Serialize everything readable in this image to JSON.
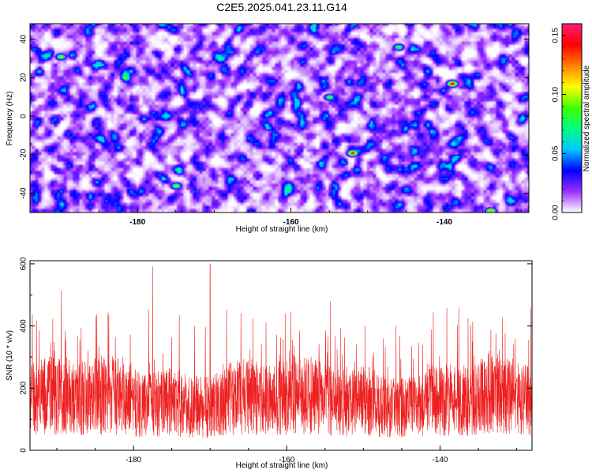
{
  "figure_title": "C2E5.2025.041.23.11.G14",
  "chart_data": [
    {
      "type": "heatmap",
      "title": "C2E5.2025.041.23.11.G14",
      "xlabel": "Height of straight line (km)",
      "ylabel": "Frequency (Hz)",
      "xlim": [
        -194,
        -129
      ],
      "ylim": [
        -50,
        48
      ],
      "x_ticks": [
        -180,
        -160,
        -140
      ],
      "x_tick_labels": [
        "-180",
        "-160",
        "-140"
      ],
      "y_ticks": [
        -40,
        -20,
        0,
        20,
        40
      ],
      "y_tick_labels": [
        "-40",
        "-20",
        "0",
        "20",
        "40"
      ],
      "colorbar": {
        "label": "Normalized spectral amplitude",
        "range": [
          0.0,
          0.16
        ],
        "ticks": [
          0.0,
          0.05,
          0.1,
          0.15
        ],
        "tick_labels": [
          "0.00",
          "0.05",
          "0.10",
          "0.15"
        ],
        "colors": [
          "#ffffff",
          "#9b30ff",
          "#0000ff",
          "#00c8ff",
          "#00ff80",
          "#40ff00",
          "#ffff00",
          "#ff8000",
          "#ff0000",
          "#ff1e78"
        ]
      },
      "peaks": [
        {
          "x": -139,
          "y": 17,
          "value": 0.16
        },
        {
          "x": -152,
          "y": -19,
          "value": 0.15
        },
        {
          "x": -134,
          "y": -49,
          "value": 0.13
        },
        {
          "x": -190,
          "y": 31,
          "value": 0.1
        },
        {
          "x": -175,
          "y": -36,
          "value": 0.1
        },
        {
          "x": -155,
          "y": 10,
          "value": 0.09
        },
        {
          "x": -146,
          "y": 36,
          "value": 0.09
        }
      ]
    },
    {
      "type": "line",
      "xlabel": "Height of straight line (km)",
      "ylabel": "SNR (10 * v/v)",
      "xlim": [
        -193.5,
        -128
      ],
      "ylim": [
        0,
        610
      ],
      "x_ticks": [
        -180,
        -160,
        -140
      ],
      "x_tick_labels": [
        "-180",
        "-160",
        "-140"
      ],
      "y_ticks": [
        0,
        200,
        400,
        600
      ],
      "y_tick_labels": [
        "0",
        "200",
        "400",
        "600"
      ],
      "line_color": "#ee2020",
      "series_summary": {
        "mean": 160,
        "typical_max": 330,
        "peak": 600,
        "peak_x": -170
      }
    }
  ]
}
